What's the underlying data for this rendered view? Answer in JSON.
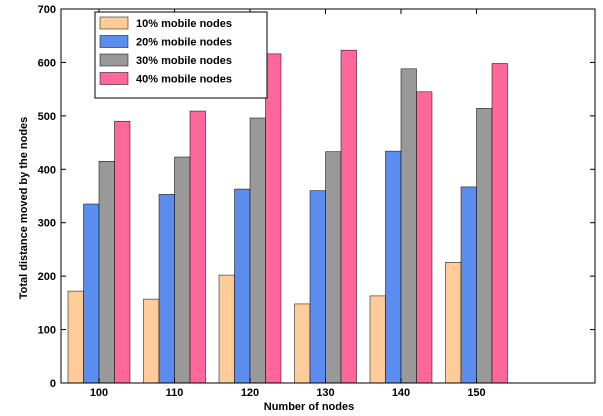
{
  "chart_data": {
    "type": "bar",
    "title": "",
    "xlabel": "Number of nodes",
    "ylabel": "Total distance moved by the nodes",
    "categories": [
      "100",
      "110",
      "120",
      "130",
      "140",
      "150"
    ],
    "ylim": [
      0,
      700
    ],
    "yticks": [
      "0",
      "100",
      "200",
      "300",
      "400",
      "500",
      "600",
      "700"
    ],
    "grid": false,
    "legend_position": "top-left",
    "series": [
      {
        "name": "10% mobile nodes",
        "color": "#FFCC99",
        "values": [
          172,
          157,
          202,
          148,
          163,
          226
        ]
      },
      {
        "name": "20% mobile nodes",
        "color": "#5B8DEF",
        "values": [
          335,
          353,
          363,
          360,
          434,
          367
        ]
      },
      {
        "name": "30% mobile nodes",
        "color": "#999999",
        "values": [
          415,
          423,
          496,
          433,
          588,
          514
        ]
      },
      {
        "name": "40% mobile nodes",
        "color": "#FF6699",
        "values": [
          490,
          509,
          616,
          623,
          545,
          598
        ]
      }
    ]
  }
}
